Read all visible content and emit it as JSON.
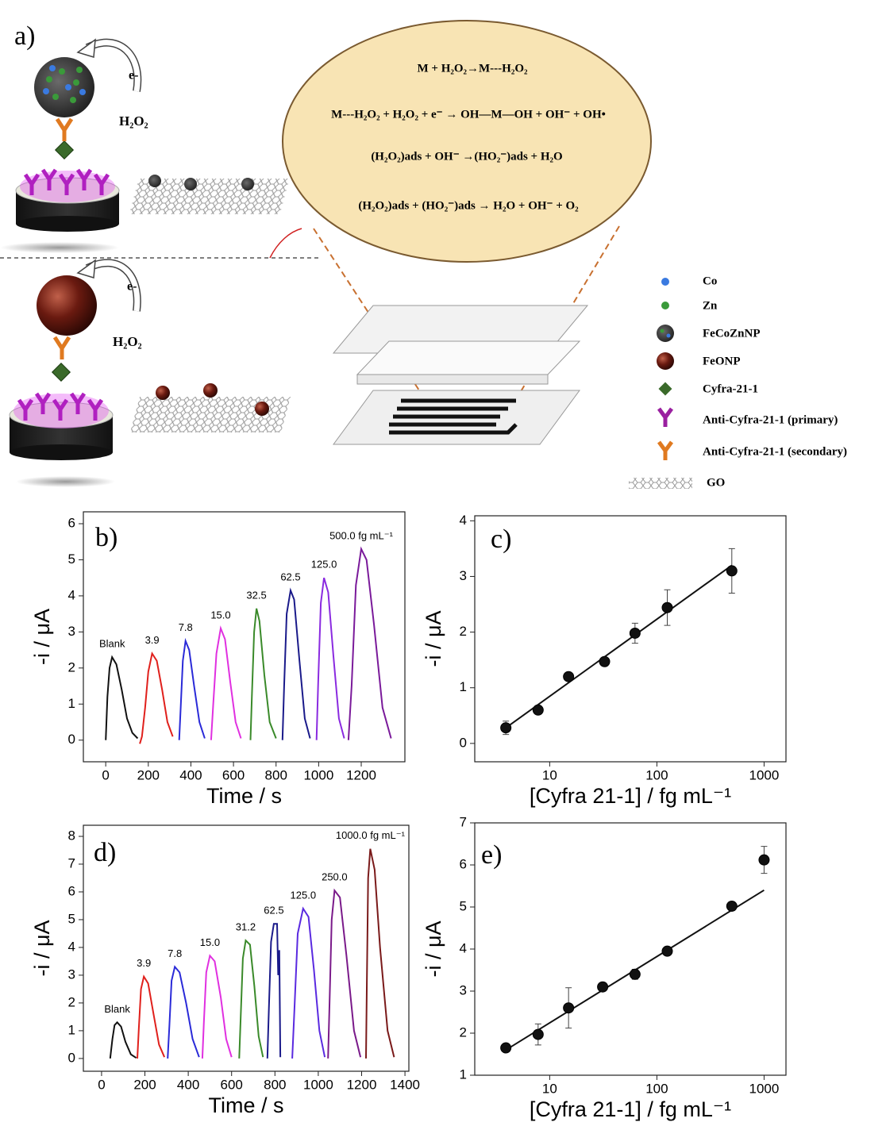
{
  "figure_a": {
    "label": "a)",
    "electron_labels": [
      "e-",
      "e-"
    ],
    "oxidant_labels": [
      "H₂O₂",
      "H₂O₂"
    ],
    "equations": [
      "M + H₂O₂→M---H₂O₂",
      "M---H₂O₂ + H₂O₂ + e⁻ → OH—M—OH + OH⁻ + OH•",
      "(H₂O₂)ads + OH⁻ →(HO₂⁻)ads + H₂O",
      "(H₂O₂)ads + (HO₂⁻)ads → H₂O + OH⁻ + O₂"
    ],
    "legend": [
      "Co",
      "Zn",
      "FeCoZnNP",
      "FeONP",
      "Cyfra-21-1",
      "Anti-Cyfra-21-1  (primary)",
      "Anti-Cyfra-21-1  (secondary)",
      "GO"
    ]
  },
  "chart_data": [
    {
      "type": "line",
      "label": "b)",
      "xlabel": "Time / s",
      "ylabel": "-i / μA",
      "xlim": [
        -105,
        1405
      ],
      "ylim": [
        -0.6,
        6.33
      ],
      "xticks": [
        0,
        200,
        400,
        600,
        800,
        1000,
        1200
      ],
      "yticks": [
        0,
        1,
        2,
        3,
        4,
        5,
        6
      ],
      "series": [
        {
          "name": "Blank",
          "color": "#111111",
          "x": [
            0,
            8,
            18,
            30,
            50,
            75,
            100,
            125,
            150
          ],
          "values": [
            0,
            1.2,
            2.0,
            2.3,
            2.1,
            1.4,
            0.6,
            0.2,
            0.05
          ]
        },
        {
          "name": "3.9",
          "color": "#e0201c",
          "x": [
            160,
            170,
            185,
            200,
            218,
            240,
            265,
            290,
            315
          ],
          "values": [
            -0.1,
            0.1,
            0.9,
            1.9,
            2.4,
            2.2,
            1.4,
            0.5,
            0.1
          ]
        },
        {
          "name": "7.8",
          "color": "#2a2ad8",
          "x": [
            345,
            352,
            362,
            375,
            392,
            415,
            440,
            465
          ],
          "values": [
            0,
            0.9,
            2.2,
            2.75,
            2.5,
            1.5,
            0.5,
            0.05
          ]
        },
        {
          "name": "15.0",
          "color": "#e030e0",
          "x": [
            495,
            505,
            520,
            540,
            560,
            585,
            610,
            635
          ],
          "values": [
            0,
            1.0,
            2.4,
            3.1,
            2.8,
            1.6,
            0.5,
            0.05
          ]
        },
        {
          "name": "32.5",
          "color": "#3a8a2a",
          "x": [
            680,
            687,
            697,
            708,
            722,
            745,
            770,
            800
          ],
          "values": [
            0,
            1.3,
            3.0,
            3.65,
            3.3,
            1.8,
            0.5,
            0.05
          ]
        },
        {
          "name": "62.5",
          "color": "#1a1a8a",
          "x": [
            830,
            838,
            850,
            868,
            885,
            910,
            935,
            960
          ],
          "values": [
            0,
            1.5,
            3.5,
            4.15,
            3.9,
            2.2,
            0.6,
            0.05
          ]
        },
        {
          "name": "125.0",
          "color": "#8a2ae0",
          "x": [
            990,
            998,
            1010,
            1025,
            1045,
            1070,
            1095,
            1120
          ],
          "values": [
            0,
            1.6,
            3.8,
            4.5,
            4.1,
            2.3,
            0.6,
            0.05
          ]
        },
        {
          "name": "500.0 fg mL⁻¹",
          "color": "#7a1a9a",
          "x": [
            1140,
            1155,
            1175,
            1200,
            1225,
            1260,
            1300,
            1340
          ],
          "values": [
            0,
            1.5,
            4.3,
            5.3,
            5.0,
            3.2,
            0.9,
            0.05
          ]
        }
      ]
    },
    {
      "type": "scatter",
      "label": "c)",
      "xlabel": "[Cyfra 21-1] / fg mL⁻¹",
      "ylabel": "-i / μA",
      "xscale": "log",
      "xlim": [
        2,
        1600
      ],
      "ylim": [
        -0.33,
        4.09
      ],
      "xticks": [
        10,
        100,
        1000
      ],
      "yticks": [
        0,
        1,
        2,
        3,
        4
      ],
      "color": "#111111",
      "x": [
        3.9,
        7.8,
        15.0,
        32.5,
        62.5,
        125,
        500
      ],
      "values": [
        0.28,
        0.6,
        1.2,
        1.47,
        1.98,
        2.44,
        3.1
      ],
      "errors": [
        0.12,
        0.05,
        0.05,
        0.05,
        0.18,
        0.32,
        0.4
      ],
      "fit": {
        "x": [
          3.9,
          500
        ],
        "values": [
          0.28,
          3.2
        ],
        "color": "#111111"
      }
    },
    {
      "type": "line",
      "label": "d)",
      "xlabel": "Time / s",
      "ylabel": "-i / μA",
      "xlim": [
        -84,
        1418
      ],
      "ylim": [
        -0.46,
        8.4
      ],
      "xticks": [
        0,
        200,
        400,
        600,
        800,
        1000,
        1200,
        1400
      ],
      "yticks": [
        0,
        1,
        2,
        3,
        4,
        5,
        6,
        7,
        8
      ],
      "series": [
        {
          "name": "Blank",
          "color": "#111111",
          "x": [
            40,
            50,
            60,
            72,
            90,
            110,
            135,
            160
          ],
          "values": [
            0,
            0.7,
            1.2,
            1.3,
            1.15,
            0.6,
            0.15,
            0.02
          ]
        },
        {
          "name": "3.9",
          "color": "#e0201c",
          "x": [
            165,
            172,
            182,
            195,
            215,
            240,
            265,
            290
          ],
          "values": [
            0,
            1.1,
            2.5,
            2.95,
            2.7,
            1.6,
            0.5,
            0.05
          ]
        },
        {
          "name": "7.8",
          "color": "#2a2ad8",
          "x": [
            305,
            313,
            323,
            338,
            360,
            390,
            420,
            450
          ],
          "values": [
            0,
            1.2,
            2.8,
            3.3,
            3.1,
            2.0,
            0.7,
            0.05
          ]
        },
        {
          "name": "15.0",
          "color": "#e030e0",
          "x": [
            465,
            472,
            483,
            500,
            522,
            550,
            575,
            600
          ],
          "values": [
            0,
            1.3,
            3.1,
            3.7,
            3.5,
            2.2,
            0.7,
            0.05
          ]
        },
        {
          "name": "31.2",
          "color": "#3a8a2a",
          "x": [
            635,
            642,
            652,
            665,
            685,
            705,
            725,
            745
          ],
          "values": [
            0,
            1.5,
            3.6,
            4.25,
            4.1,
            2.6,
            0.8,
            0.05
          ]
        },
        {
          "name": "62.5",
          "color": "#1a1a8a",
          "x": [
            765,
            772,
            782,
            795,
            810,
            815,
            820,
            825
          ],
          "values": [
            0,
            1.8,
            4.2,
            4.85,
            4.85,
            3.0,
            3.9,
            0.05
          ]
        },
        {
          "name": "125.0",
          "color": "#5a2ae0",
          "x": [
            880,
            890,
            905,
            930,
            955,
            980,
            1005,
            1030
          ],
          "values": [
            0,
            1.8,
            4.5,
            5.4,
            5.1,
            3.2,
            1.0,
            0.05
          ]
        },
        {
          "name": "250.0",
          "color": "#7a1a8a",
          "x": [
            1045,
            1052,
            1062,
            1075,
            1100,
            1130,
            1165,
            1195
          ],
          "values": [
            0,
            2.0,
            5.0,
            6.05,
            5.8,
            3.7,
            1.0,
            0.05
          ]
        },
        {
          "name": "1000.0 fg mL⁻¹",
          "color": "#7a1a1a",
          "x": [
            1220,
            1224,
            1230,
            1240,
            1260,
            1285,
            1320,
            1350
          ],
          "values": [
            0,
            2.5,
            6.5,
            7.55,
            6.8,
            4.0,
            1.0,
            0.05
          ]
        }
      ]
    },
    {
      "type": "scatter",
      "label": "e)",
      "xlabel": "[Cyfra 21-1] / fg mL⁻¹",
      "ylabel": "-i / μA",
      "xscale": "log",
      "xlim": [
        2,
        1600
      ],
      "ylim": [
        1,
        7
      ],
      "xticks": [
        10,
        100,
        1000
      ],
      "yticks": [
        1,
        2,
        3,
        4,
        5,
        6,
        7
      ],
      "color": "#111111",
      "x": [
        3.9,
        7.8,
        15.0,
        31.2,
        62.5,
        125,
        500,
        1000
      ],
      "values": [
        1.65,
        1.97,
        2.6,
        3.1,
        3.4,
        3.95,
        5.02,
        6.12
      ],
      "errors": [
        0.03,
        0.25,
        0.48,
        0.05,
        0.12,
        0.05,
        0.1,
        0.32
      ],
      "fit": {
        "x": [
          3.9,
          1000
        ],
        "values": [
          1.6,
          5.4
        ],
        "color": "#111111"
      }
    }
  ]
}
